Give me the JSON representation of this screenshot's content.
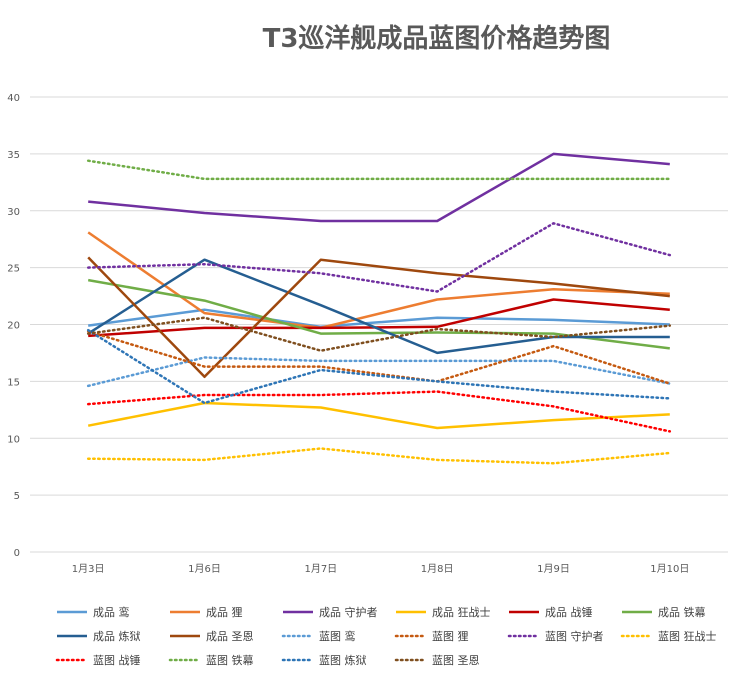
{
  "chart_data": {
    "type": "line",
    "title": "T3巡洋舰成品蓝图价格趋势图",
    "categories": [
      "1月3日",
      "1月6日",
      "1月7日",
      "1月8日",
      "1月9日",
      "1月10日"
    ],
    "ylim": [
      0,
      40
    ],
    "yticks": [
      0,
      5,
      10,
      15,
      20,
      25,
      30,
      35,
      40
    ],
    "grid": true,
    "legend_position": "bottom",
    "series": [
      {
        "name": "成品 鸾",
        "color": "#5B9BD5",
        "dash": false,
        "values": [
          19.9,
          21.3,
          19.8,
          20.6,
          20.4,
          20.0
        ]
      },
      {
        "name": "成品 狸",
        "color": "#ED7D31",
        "dash": false,
        "values": [
          28.1,
          21.0,
          19.7,
          22.2,
          23.1,
          22.7
        ]
      },
      {
        "name": "成品 守护者",
        "color": "#7030A0",
        "dash": false,
        "values": [
          30.8,
          29.8,
          29.1,
          29.1,
          35.0,
          34.1
        ]
      },
      {
        "name": "成品 狂战士",
        "color": "#FFC000",
        "dash": false,
        "values": [
          11.1,
          13.1,
          12.7,
          10.9,
          11.6,
          12.1
        ]
      },
      {
        "name": "成品 战锤",
        "color": "#C00000",
        "dash": false,
        "values": [
          19.0,
          19.7,
          19.7,
          19.8,
          22.2,
          21.3
        ]
      },
      {
        "name": "成品 铁幕",
        "color": "#70AD47",
        "dash": false,
        "values": [
          23.9,
          22.1,
          19.2,
          19.3,
          19.2,
          17.9
        ]
      },
      {
        "name": "成品 炼狱",
        "color": "#255E91",
        "dash": false,
        "values": [
          19.2,
          25.7,
          21.7,
          17.5,
          18.9,
          18.9
        ]
      },
      {
        "name": "成品 圣恩",
        "color": "#9E480E",
        "dash": false,
        "values": [
          25.9,
          15.4,
          25.7,
          24.5,
          23.6,
          22.5
        ]
      },
      {
        "name": "蓝图 鸾",
        "color": "#5B9BD5",
        "dash": true,
        "values": [
          14.6,
          17.1,
          16.8,
          16.8,
          16.8,
          14.8
        ]
      },
      {
        "name": "蓝图 狸",
        "color": "#C55A11",
        "dash": true,
        "values": [
          19.4,
          16.3,
          16.3,
          15.0,
          18.1,
          14.8
        ]
      },
      {
        "name": "蓝图 守护者",
        "color": "#7030A0",
        "dash": true,
        "values": [
          25.0,
          25.3,
          24.5,
          22.9,
          28.9,
          26.1
        ]
      },
      {
        "name": "蓝图 狂战士",
        "color": "#FFC000",
        "dash": true,
        "values": [
          8.2,
          8.1,
          9.1,
          8.1,
          7.8,
          8.7
        ]
      },
      {
        "name": "蓝图 战锤",
        "color": "#FF0000",
        "dash": true,
        "values": [
          13.0,
          13.8,
          13.8,
          14.1,
          12.8,
          10.6
        ]
      },
      {
        "name": "蓝图 铁幕",
        "color": "#70AD47",
        "dash": true,
        "values": [
          34.4,
          32.8,
          32.8,
          32.8,
          32.8,
          32.8
        ]
      },
      {
        "name": "蓝图 炼狱",
        "color": "#2E75B6",
        "dash": true,
        "values": [
          19.5,
          13.1,
          16.0,
          15.0,
          14.1,
          13.5
        ]
      },
      {
        "name": "蓝图 圣恩",
        "color": "#7F4F1F",
        "dash": true,
        "values": [
          19.2,
          20.6,
          17.7,
          19.6,
          18.9,
          19.9
        ]
      }
    ]
  }
}
